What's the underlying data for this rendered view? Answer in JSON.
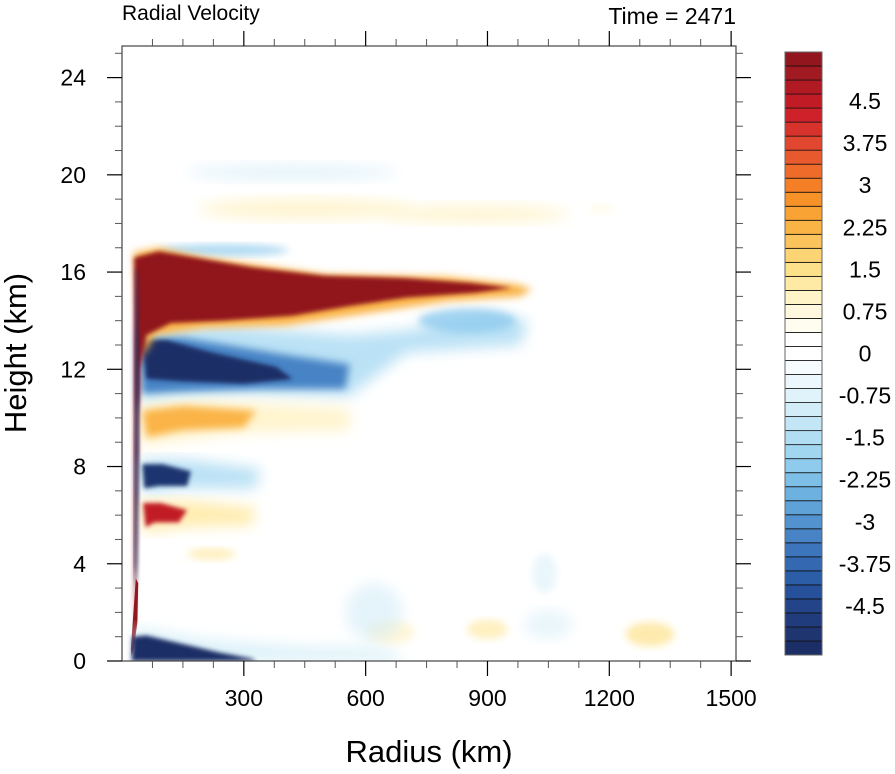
{
  "chart_data": {
    "type": "heatmap",
    "title": "Radial Velocity",
    "subtitle": "Time = 2471",
    "xlabel": "Radius (km)",
    "ylabel": "Height (km)",
    "xlim": [
      0,
      1512
    ],
    "ylim": [
      0,
      25.3
    ],
    "x_ticks": [
      300,
      600,
      900,
      1200,
      1500
    ],
    "x_tick_labels": [
      "300",
      "600",
      "900",
      "1200",
      "1500"
    ],
    "x_minor_step": 75,
    "y_ticks": [
      0,
      4,
      8,
      12,
      16,
      20,
      24
    ],
    "y_tick_labels": [
      "0",
      "4",
      "8",
      "12",
      "16",
      "20",
      "24"
    ],
    "y_minor_step": 1,
    "grid": false,
    "colorbar": {
      "placement": "right",
      "min": -5.25,
      "max": 5.25,
      "step": 0.25,
      "labels": [
        "4.5",
        "3.75",
        "3",
        "2.25",
        "1.5",
        "0.75",
        "0",
        "-0.75",
        "-1.5",
        "-2.25",
        "-3",
        "-3.75",
        "-4.5"
      ],
      "label_values": [
        4.5,
        3.75,
        3,
        2.25,
        1.5,
        0.75,
        0,
        -0.75,
        -1.5,
        -2.25,
        -3,
        -3.75,
        -4.5
      ],
      "colors": [
        "#1b2f66",
        "#1e3570",
        "#213c7c",
        "#234488",
        "#27509a",
        "#2c5ea8",
        "#3469b2",
        "#3d75bc",
        "#4783c5",
        "#5293cf",
        "#5ea2d8",
        "#6cb1e0",
        "#7dbfe7",
        "#8fcbed",
        "#a1d6f1",
        "#b2def4",
        "#c3e6f6",
        "#d3edf8",
        "#e0f2fa",
        "#ebf7fc",
        "#f6fbfe",
        "#ffffff",
        "#ffffff",
        "#fffdf0",
        "#fff8de",
        "#fff3c8",
        "#ffeaa5",
        "#fde18a",
        "#fcd474",
        "#fbc35c",
        "#fab446",
        "#f9a335",
        "#f79229",
        "#f47f27",
        "#ef6b2a",
        "#e9592e",
        "#e1462e",
        "#d8322c",
        "#cf2129",
        "#c11b26",
        "#b11a23",
        "#a21a21",
        "#91161d"
      ]
    },
    "features": [
      {
        "name": "upper outflow jet",
        "sign": "positive",
        "r_range_km": [
          30,
          1000
        ],
        "z_center_km": 15.2,
        "peak_value": 5.25
      },
      {
        "name": "inflow below outflow",
        "sign": "negative",
        "r_range_km": [
          40,
          560
        ],
        "z_center_km": 12.1,
        "peak_value": -5.25
      },
      {
        "name": "mid-level outflow band",
        "sign": "positive",
        "r_range_km": [
          40,
          560
        ],
        "z_center_km": 10.1,
        "peak_value": 3.0
      },
      {
        "name": "mid-level inflow band",
        "sign": "negative",
        "r_range_km": [
          40,
          320
        ],
        "z_center_km": 7.6,
        "peak_value": -5.0
      },
      {
        "name": "lower outflow band",
        "sign": "positive",
        "r_range_km": [
          40,
          330
        ],
        "z_center_km": 6.1,
        "peak_value": 4.5
      },
      {
        "name": "boundary layer inflow",
        "sign": "negative",
        "r_range_km": [
          25,
          600
        ],
        "z_center_km": 0.5,
        "peak_value": -5.25
      },
      {
        "name": "upper weak outflow",
        "sign": "positive",
        "r_range_km": [
          250,
          1200
        ],
        "z_center_km": 18.6,
        "peak_value": 1.0
      },
      {
        "name": "upper weak inflow",
        "sign": "negative",
        "r_range_km": [
          200,
          700
        ],
        "z_center_km": 20.1,
        "peak_value": -0.8
      },
      {
        "name": "eyewall outflow column",
        "sign": "positive",
        "r_range_km": [
          25,
          45
        ],
        "z_center_km": 2.0,
        "peak_value": 5.25
      }
    ]
  }
}
